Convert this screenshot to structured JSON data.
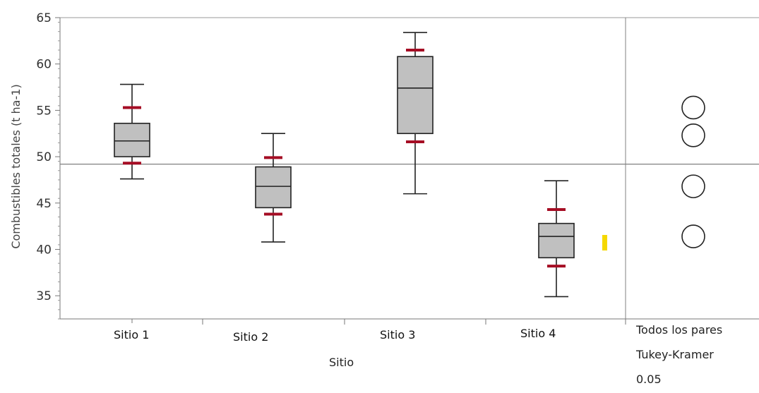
{
  "chart_data": {
    "type": "boxplot",
    "title": "",
    "xlabel": "Sitio",
    "ylabel": "Combustibles totales (t ha-1)",
    "ylim": [
      32.5,
      65
    ],
    "yticks": [
      35,
      40,
      45,
      50,
      55,
      60,
      65
    ],
    "grand_mean": 49.2,
    "categories": [
      "Sitio 1",
      "Sitio 2",
      "Sitio 3",
      "Sitio 4"
    ],
    "series": [
      {
        "category": "Sitio 1",
        "min": 47.6,
        "q1": 50.0,
        "median": 51.7,
        "q3": 53.6,
        "max": 57.8,
        "ci_low": 49.3,
        "ci_high": 55.3
      },
      {
        "category": "Sitio 2",
        "min": 40.8,
        "q1": 44.5,
        "median": 46.8,
        "q3": 48.9,
        "max": 52.5,
        "ci_low": 43.8,
        "ci_high": 49.9
      },
      {
        "category": "Sitio 3",
        "min": 46.0,
        "q1": 52.5,
        "median": 57.4,
        "q3": 60.8,
        "max": 63.4,
        "ci_low": 51.6,
        "ci_high": 61.5
      },
      {
        "category": "Sitio 4",
        "min": 34.9,
        "q1": 39.1,
        "median": 41.4,
        "q3": 42.8,
        "max": 47.4,
        "ci_low": 38.2,
        "ci_high": 44.3
      }
    ],
    "comparison_circles": {
      "label_lines": [
        "Todos los pares",
        "Tukey-Kramer",
        "0.05"
      ],
      "circle_centers": [
        55.3,
        52.3,
        46.8,
        41.4
      ]
    },
    "colors": {
      "box_fill": "#c0c0c0",
      "ci_marks": "#a50d24",
      "highlight": "#f5d800",
      "gridline": "#808080"
    }
  }
}
